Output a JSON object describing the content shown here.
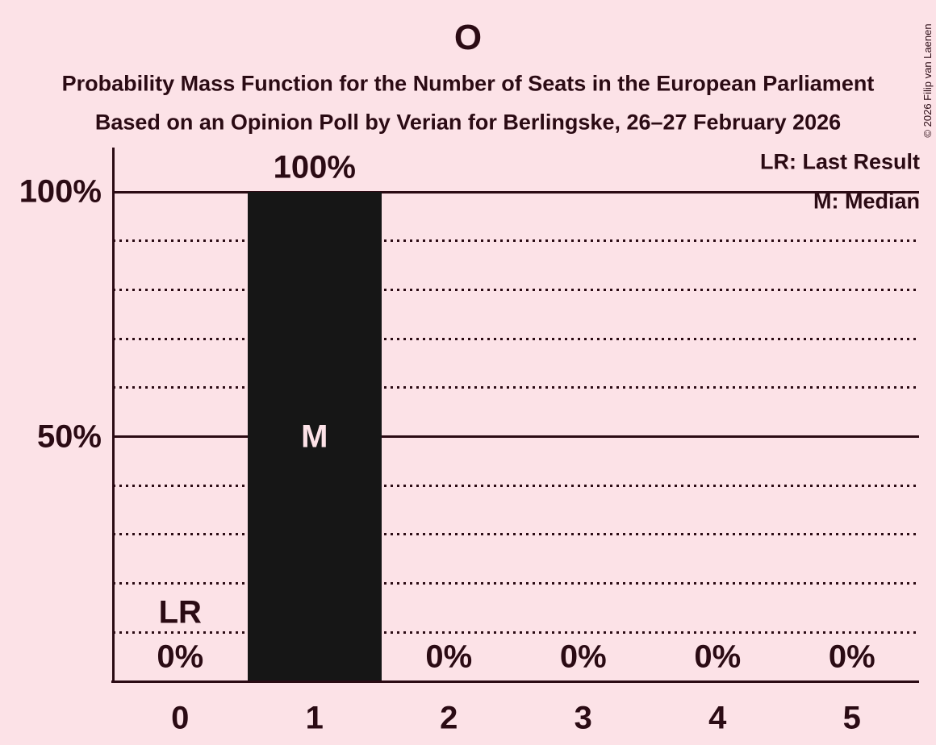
{
  "page": {
    "background_color": "#fce2e7",
    "ink_color": "#2b0b14",
    "copyright": "© 2026 Filip van Laenen"
  },
  "header": {
    "title": "O",
    "subtitle1": "Probability Mass Function for the Number of Seats in the European Parliament",
    "subtitle2": "Based on an Opinion Poll by Verian for Berlingske, 26–27 February 2026"
  },
  "legend": {
    "lr_label": "LR: Last Result",
    "m_label": "M: Median"
  },
  "chart_data": {
    "type": "bar",
    "title": "O",
    "categories": [
      "0",
      "1",
      "2",
      "3",
      "4",
      "5"
    ],
    "values": [
      0,
      100,
      0,
      0,
      0,
      0
    ],
    "value_labels": [
      "0%",
      "100%",
      "0%",
      "0%",
      "0%",
      "0%"
    ],
    "bar_color": "#161616",
    "ylim": [
      0,
      100
    ],
    "yticks": [
      {
        "value": 100,
        "label": "100%"
      },
      {
        "value": 50,
        "label": "50%"
      }
    ],
    "gridlines": {
      "solid_at": [
        50,
        100
      ],
      "dotted_at": [
        10,
        20,
        30,
        40,
        60,
        70,
        80,
        90
      ]
    },
    "legend_position": "top-right",
    "annotations": [
      {
        "label": "LR",
        "category_index": 0,
        "y_percent": 14,
        "color": "#2b0b14"
      },
      {
        "label": "M",
        "category_index": 1,
        "y_percent": 50,
        "color": "#fce2e7"
      }
    ]
  }
}
